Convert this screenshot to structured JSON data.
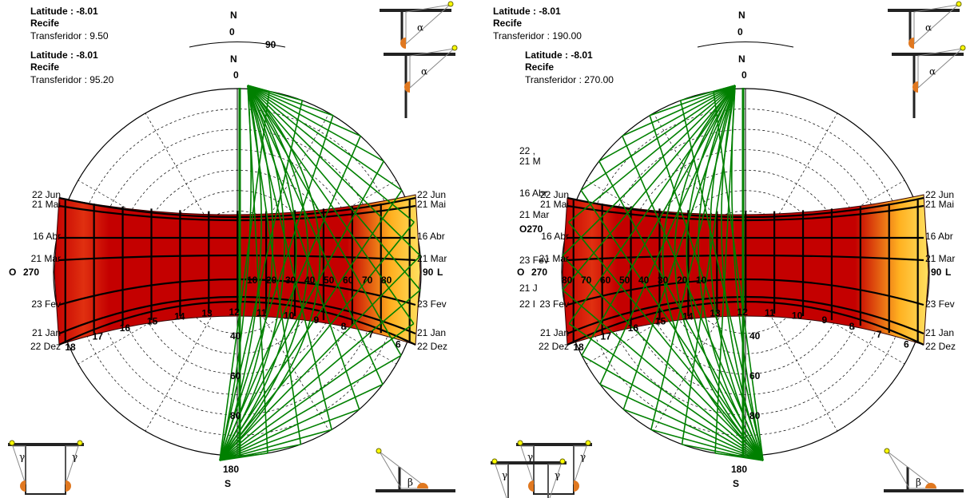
{
  "symbols": {
    "alpha": "α",
    "gamma": "γ",
    "beta": "β"
  },
  "panels": [
    {
      "back_info": {
        "latitude": "Latitude : -8.01",
        "city": "Recife",
        "transferidor": "Transferidor : 9.50"
      },
      "front_info": {
        "latitude": "Latitude : -8.01",
        "city": "Recife",
        "transferidor": "Transferidor : 95.20"
      },
      "north": "N",
      "north_deg": "0",
      "back_scale_top": "90",
      "south": "S",
      "south_deg": "180",
      "west": "O",
      "west_deg": "270",
      "east": "L",
      "east_deg": "90",
      "dates": [
        "22 Jun",
        "21 Mai",
        "16 Abr",
        "21 Mar",
        "23 Fev",
        "21 Jan",
        "22 Dez"
      ],
      "hours": [
        "18",
        "17",
        "16",
        "15",
        "14",
        "13",
        "12",
        "11",
        "10",
        "9",
        "8",
        "7",
        "6"
      ],
      "scale_h": [
        "10",
        "20",
        "30",
        "40",
        "50",
        "60",
        "70",
        "80"
      ],
      "scale_v": [
        "40",
        "60",
        "80"
      ],
      "ghost_labels": []
    },
    {
      "back_info": {
        "latitude": "Latitude : -8.01",
        "city": "Recife",
        "transferidor": "Transferidor : 190.00"
      },
      "front_info": {
        "latitude": "Latitude : -8.01",
        "city": "Recife",
        "transferidor": "Transferidor : 270.00"
      },
      "north": "N",
      "north_deg": "0",
      "back_scale_top": "",
      "south": "S",
      "south_deg": "180",
      "west": "O",
      "west_deg": "270",
      "east": "L",
      "east_deg": "90",
      "dates": [
        "22 Jun",
        "21 Mai",
        "16 Abr",
        "21 Mar",
        "23 Fev",
        "21 Jan",
        "22 Dez"
      ],
      "hours": [
        "18",
        "17",
        "16",
        "15",
        "14",
        "13",
        "12",
        "11",
        "10",
        "9",
        "8",
        "7",
        "6"
      ],
      "scale_h": [
        "80",
        "70",
        "60",
        "50",
        "40",
        "30",
        "20",
        "10"
      ],
      "scale_v": [
        "40",
        "60",
        "80"
      ],
      "ghost_labels": [
        "22 ,",
        "21 M",
        "16 Abr",
        "21 Mar",
        "O270",
        "23 Fev",
        "21 J",
        "22 I"
      ]
    }
  ]
}
